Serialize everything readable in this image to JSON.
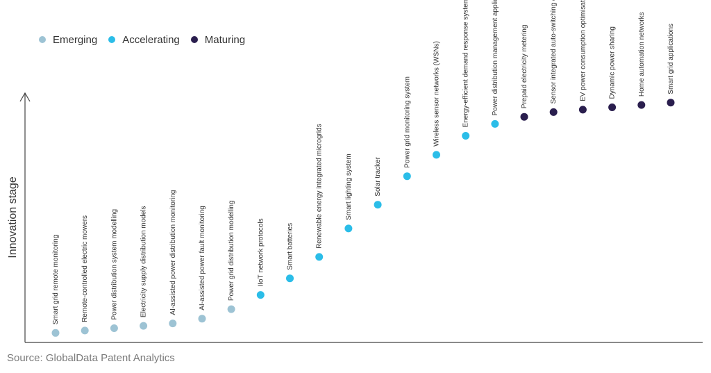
{
  "legend": [
    {
      "label": "Emerging",
      "color": "#9dc3d4"
    },
    {
      "label": "Accelerating",
      "color": "#2bbde8"
    },
    {
      "label": "Maturing",
      "color": "#2a1e4e"
    }
  ],
  "source": "Source: GlobalData Patent Analytics",
  "chart_data": {
    "type": "scatter",
    "title": "",
    "xlabel": "",
    "ylabel": "Innovation stage",
    "grid": false,
    "legend_position": "top-left",
    "categories": [
      "Smart grid remote monitoring",
      "Remote-controlled electric mowers",
      "Power distribution system modelling",
      "Electricity supply distribution models",
      "AI-assisted power distribution monitoring",
      "AI-assisted power fault monitoring",
      "Power grid distribution modelling",
      "IIoT network protocols",
      "Smart batteries",
      "Renewable energy integrated microgrids",
      "Smart lighting system",
      "Solar tracker",
      "Power grid monitoring system",
      "Wireless sensor networks (WSNs)",
      "Energy-efficient demand response systems",
      "Power distribution management applications",
      "Prepaid electricity metering",
      "Sensor integrated auto-switching couplers",
      "EV power consumption optimisation",
      "Dynamic power sharing",
      "Home automation networks",
      "Smart grid applications"
    ],
    "stages": [
      "Emerging",
      "Emerging",
      "Emerging",
      "Emerging",
      "Emerging",
      "Emerging",
      "Emerging",
      "Accelerating",
      "Accelerating",
      "Accelerating",
      "Accelerating",
      "Accelerating",
      "Accelerating",
      "Accelerating",
      "Accelerating",
      "Accelerating",
      "Maturing",
      "Maturing",
      "Maturing",
      "Maturing",
      "Maturing",
      "Maturing"
    ],
    "values": [
      0.04,
      0.05,
      0.06,
      0.07,
      0.08,
      0.1,
      0.14,
      0.2,
      0.27,
      0.36,
      0.48,
      0.58,
      0.7,
      0.79,
      0.87,
      0.92,
      0.95,
      0.97,
      0.98,
      0.99,
      1.0,
      1.01
    ],
    "ylim": [
      0,
      1.05
    ]
  }
}
